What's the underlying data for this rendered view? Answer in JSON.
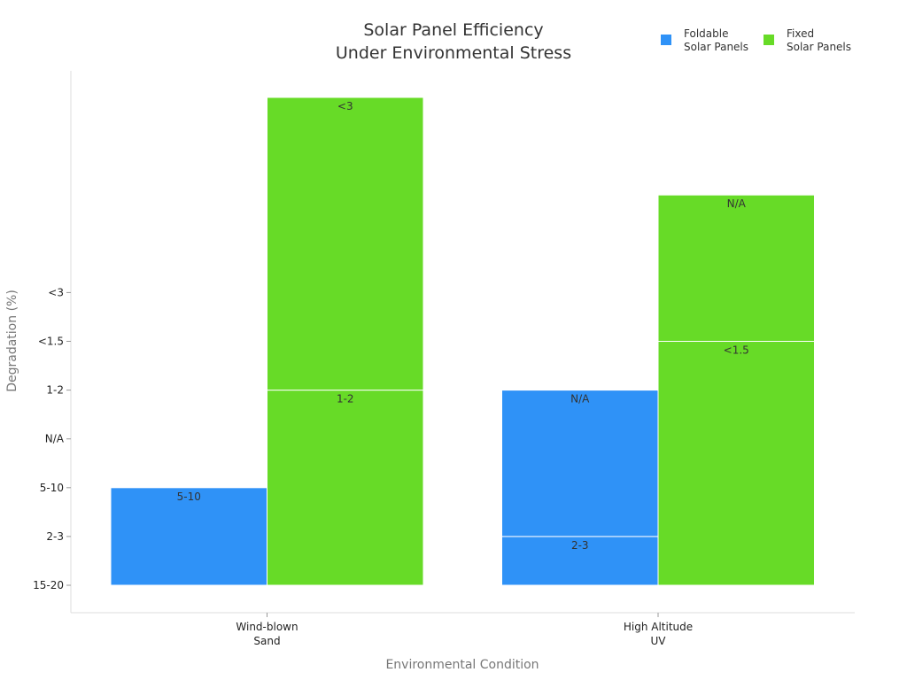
{
  "chart_data": {
    "type": "bar",
    "title": [
      "Solar Panel Efficiency",
      "Under Environmental Stress"
    ],
    "xlabel": "Environmental Condition",
    "ylabel": "Degradation (%)",
    "y_ticks": [
      "15-20",
      "2-3",
      "5-10",
      "N/A",
      "1-2",
      "<1.5",
      "<3"
    ],
    "categories": [
      {
        "lines": [
          "Wind-blown",
          "Sand"
        ]
      },
      {
        "lines": [
          "High Altitude",
          "UV"
        ]
      }
    ],
    "series": [
      {
        "name": "Foldable Solar Panels",
        "legend_lines": [
          "Foldable",
          "Solar Panels"
        ],
        "color": "#2f92f7",
        "segments": [
          [
            {
              "label": "5-10",
              "start": 0,
              "end": 2
            }
          ],
          [
            {
              "label": "2-3",
              "start": 0,
              "end": 1
            },
            {
              "label": "N/A",
              "start": 1,
              "end": 4
            }
          ]
        ]
      },
      {
        "name": "Fixed Solar Panels",
        "legend_lines": [
          "Fixed",
          "Solar Panels"
        ],
        "color": "#67db27",
        "segments": [
          [
            {
              "label": "1-2",
              "start": 0,
              "end": 4
            },
            {
              "label": "<3",
              "start": 4,
              "end": 10
            }
          ],
          [
            {
              "label": "<1.5",
              "start": 0,
              "end": 5
            },
            {
              "label": "N/A",
              "start": 5,
              "end": 8
            }
          ]
        ]
      }
    ],
    "ylim": [
      0,
      10.5
    ]
  }
}
